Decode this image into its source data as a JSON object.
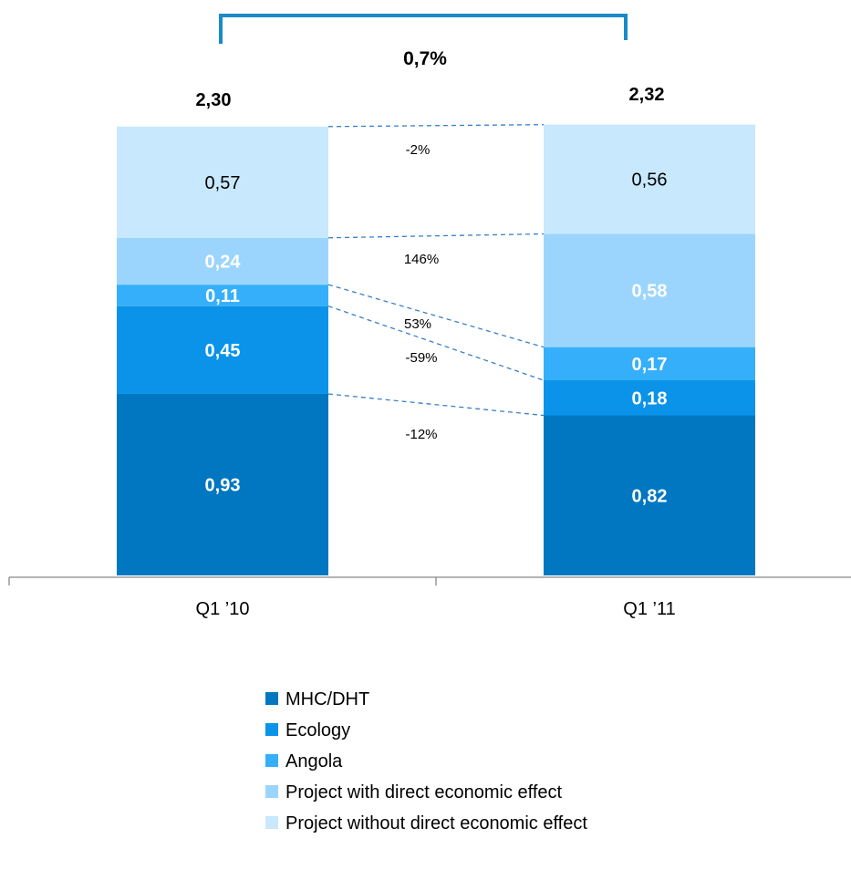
{
  "chart_data": {
    "type": "bar",
    "stacked": true,
    "categories": [
      "Q1 ’10",
      "Q1 ’11"
    ],
    "series": [
      {
        "name": "MHC/DHT",
        "values": [
          0.93,
          0.82
        ],
        "labels": [
          "0,93",
          "0,82"
        ],
        "color": "#0077C0",
        "label_color": "#ffffff",
        "label_bold": true
      },
      {
        "name": "Ecology",
        "values": [
          0.45,
          0.18
        ],
        "labels": [
          "0,45",
          "0,18"
        ],
        "color": "#0A93E8",
        "label_color": "#ffffff",
        "label_bold": true
      },
      {
        "name": "Angola",
        "values": [
          0.11,
          0.17
        ],
        "labels": [
          "0,11",
          "0,17"
        ],
        "color": "#35AFFA",
        "label_color": "#ffffff",
        "label_bold": true
      },
      {
        "name": "Project with direct economic effect",
        "values": [
          0.24,
          0.58
        ],
        "labels": [
          "0,24",
          "0,58"
        ],
        "color": "#9BD5FD",
        "label_color": "#ffffff",
        "label_bold": true
      },
      {
        "name": "Project without direct economic effect",
        "values": [
          0.57,
          0.56
        ],
        "labels": [
          "0,57",
          "0,56"
        ],
        "color": "#C8E8FD",
        "label_color": "#000000",
        "label_bold": false
      }
    ],
    "totals": [
      "2,30",
      "2,32"
    ],
    "total_growth": "0,7%",
    "change_labels": [
      "-12%",
      "-59%",
      "53%",
      "146%",
      "-2%"
    ],
    "legend": {
      "position": "bottom"
    },
    "grid": false,
    "ylim": [
      0,
      2.32
    ]
  },
  "colors": {
    "bracket": "#1A8AC8",
    "connector": "#3A7FC4",
    "axis": "#888888"
  }
}
